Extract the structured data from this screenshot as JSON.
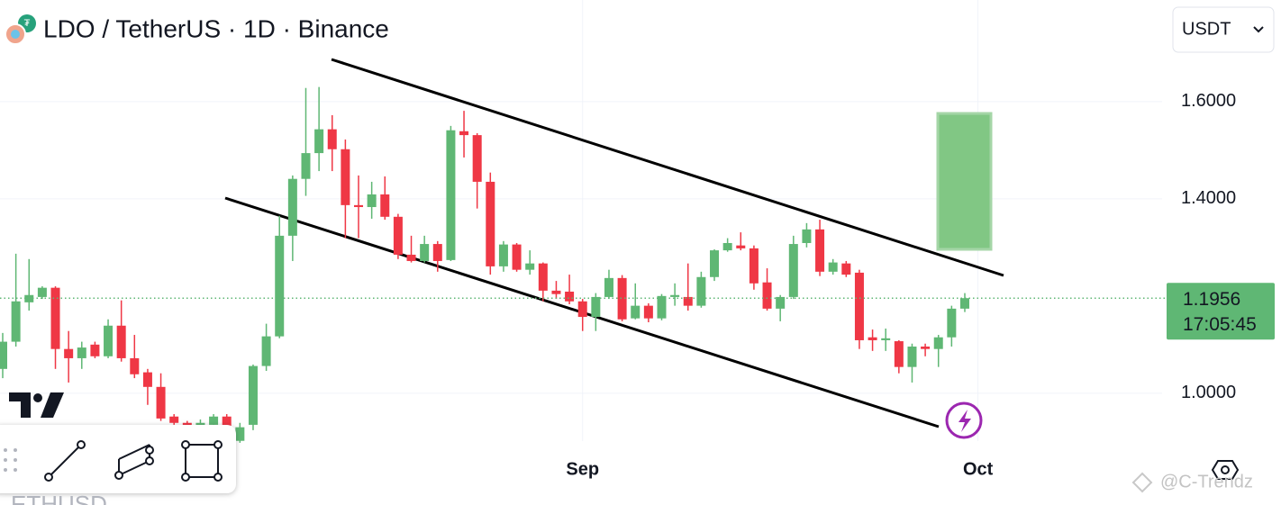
{
  "chart_data": {
    "type": "candlestick",
    "title": "LDO / TetherUS · 1D · Binance",
    "currency": "USDT",
    "watermark": "@C-Trendz",
    "footer_symbol": "ETHUSD",
    "up_color": "#5fb774",
    "down_color": "#ef3745",
    "ylim": [
      0.883,
      1.809
    ],
    "yticks": [
      {
        "value": 1.0,
        "label": "1.0000"
      },
      {
        "value": 1.4,
        "label": "1.4000"
      },
      {
        "value": 1.6,
        "label": "1.6000"
      }
    ],
    "grid": true,
    "last_price": {
      "value": 1.1956,
      "label": "1.1956"
    },
    "countdown": "17:05:45",
    "categories": [
      null,
      null,
      null,
      null,
      null,
      null,
      null,
      null,
      null,
      null,
      null,
      null,
      null,
      null,
      null,
      null,
      null,
      null,
      null,
      null,
      null,
      null,
      null,
      null,
      null,
      null,
      null,
      null,
      null,
      null,
      null,
      null,
      null,
      null,
      null,
      null,
      null,
      null,
      null,
      null,
      null,
      null,
      null,
      null,
      "Sep",
      null,
      null,
      null,
      null,
      null,
      null,
      null,
      null,
      null,
      null,
      null,
      null,
      null,
      null,
      null,
      null,
      null,
      null,
      null,
      null,
      null,
      null,
      null,
      null,
      null,
      null,
      null,
      null,
      null,
      "Oct"
    ],
    "open": [
      1.05,
      1.106,
      1.187,
      1.198,
      1.217,
      1.091,
      1.072,
      1.1,
      1.076,
      1.139,
      1.072,
      1.043,
      1.013,
      0.952,
      0.939,
      0.92,
      0.935,
      0.952,
      0.902,
      0.935,
      1.056,
      1.117,
      1.324,
      1.441,
      1.494,
      1.543,
      1.502,
      1.387,
      1.383,
      1.409,
      1.363,
      1.285,
      1.272,
      1.307,
      1.274,
      1.539,
      1.531,
      1.435,
      1.261,
      1.306,
      1.254,
      1.267,
      1.211,
      1.209,
      1.189,
      1.157,
      1.198,
      1.237,
      1.154,
      1.18,
      1.154,
      1.198,
      1.198,
      1.18,
      1.239,
      1.294,
      1.304,
      1.298,
      1.228,
      1.174,
      1.198,
      1.309,
      1.337,
      1.25,
      1.267,
      1.248,
      1.115,
      1.109,
      1.107,
      1.054,
      1.096,
      1.091,
      1.115,
      1.174,
      null
    ],
    "high": [
      1.124,
      1.287,
      1.276,
      1.22,
      1.22,
      1.128,
      1.106,
      1.106,
      1.152,
      1.191,
      1.12,
      1.05,
      1.041,
      0.957,
      0.943,
      0.946,
      0.957,
      0.957,
      0.939,
      1.059,
      1.143,
      1.365,
      1.448,
      1.628,
      1.63,
      1.572,
      1.522,
      1.448,
      1.435,
      1.446,
      1.369,
      1.324,
      1.324,
      1.313,
      1.55,
      1.581,
      1.535,
      1.454,
      1.313,
      1.309,
      1.294,
      1.269,
      1.231,
      1.244,
      1.194,
      1.206,
      1.254,
      1.243,
      1.226,
      1.185,
      1.204,
      1.226,
      1.267,
      1.25,
      1.296,
      1.319,
      1.331,
      1.304,
      1.257,
      1.202,
      1.324,
      1.35,
      1.357,
      1.276,
      1.272,
      1.254,
      1.131,
      1.133,
      1.109,
      1.102,
      1.102,
      1.12,
      1.18,
      1.206,
      null
    ],
    "low": [
      1.031,
      1.096,
      1.17,
      1.194,
      1.05,
      1.022,
      1.05,
      1.072,
      1.072,
      1.065,
      1.031,
      0.976,
      0.943,
      0.935,
      0.911,
      0.915,
      0.93,
      0.928,
      0.898,
      0.924,
      1.046,
      1.113,
      1.272,
      1.406,
      1.457,
      1.457,
      1.319,
      1.319,
      1.359,
      1.357,
      1.276,
      1.269,
      1.269,
      1.25,
      1.272,
      1.485,
      1.38,
      1.244,
      1.25,
      1.25,
      1.244,
      1.189,
      1.194,
      1.183,
      1.128,
      1.128,
      1.194,
      1.148,
      1.152,
      1.146,
      1.15,
      1.18,
      1.17,
      1.176,
      1.231,
      1.291,
      1.294,
      1.213,
      1.17,
      1.148,
      1.194,
      1.3,
      1.241,
      1.244,
      1.239,
      1.091,
      1.087,
      1.087,
      1.041,
      1.022,
      1.076,
      1.054,
      1.096,
      1.167,
      null
    ],
    "close": [
      1.106,
      1.189,
      1.202,
      1.217,
      1.091,
      1.072,
      1.094,
      1.076,
      1.139,
      1.072,
      1.039,
      1.013,
      0.948,
      0.939,
      0.92,
      0.939,
      0.952,
      0.933,
      0.93,
      1.056,
      1.117,
      1.324,
      1.441,
      1.494,
      1.543,
      1.502,
      1.387,
      1.383,
      1.409,
      1.363,
      1.285,
      1.272,
      1.307,
      1.272,
      1.541,
      1.531,
      1.435,
      1.261,
      1.306,
      1.254,
      1.267,
      1.211,
      1.204,
      1.189,
      1.157,
      1.198,
      1.237,
      1.152,
      1.18,
      1.154,
      1.2,
      1.202,
      1.18,
      1.239,
      1.294,
      1.309,
      1.298,
      1.226,
      1.174,
      1.198,
      1.307,
      1.337,
      1.25,
      1.269,
      1.244,
      1.109,
      1.109,
      1.113,
      1.054,
      1.096,
      1.091,
      1.115,
      1.174,
      1.1956,
      null
    ]
  }
}
